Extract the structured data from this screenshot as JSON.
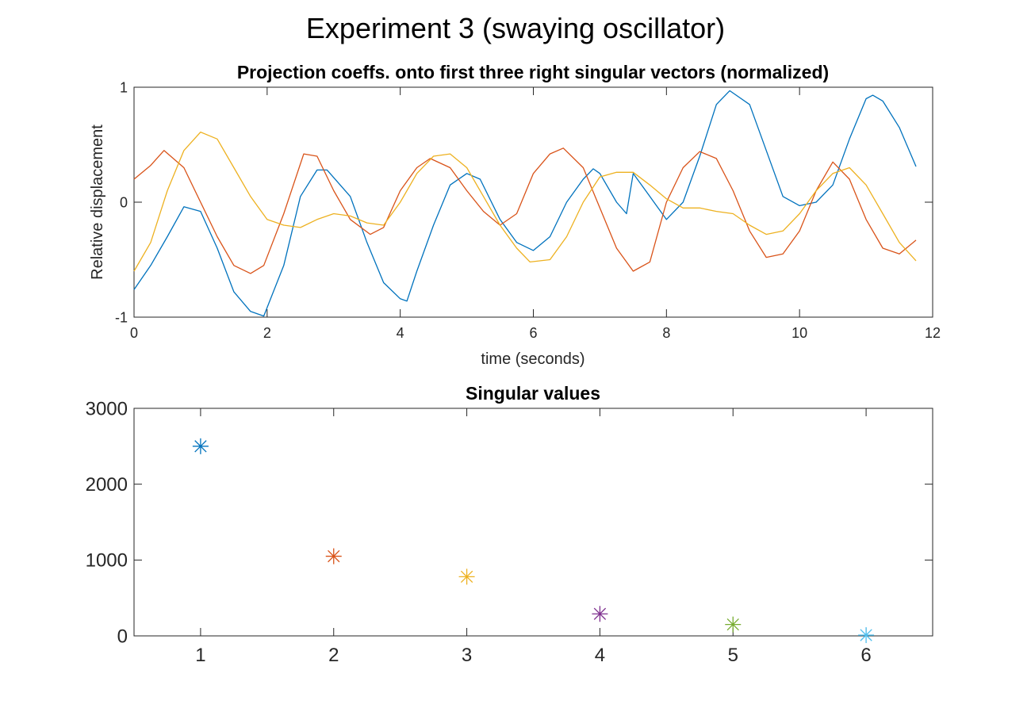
{
  "figure": {
    "title": "Experiment 3 (swaying oscillator)"
  },
  "chart_data": [
    {
      "type": "line",
      "title": "Projection coeffs. onto first three right singular vectors (normalized)",
      "xlabel": "time (seconds)",
      "ylabel": "Relative displacement",
      "xlim": [
        0,
        12
      ],
      "ylim": [
        -1,
        1
      ],
      "xticks": [
        0,
        2,
        4,
        6,
        8,
        10,
        12
      ],
      "yticks": [
        -1,
        0,
        1
      ],
      "grid": false,
      "series": [
        {
          "color": "#0072BD",
          "x": [
            0,
            0.25,
            0.5,
            0.75,
            1.0,
            1.25,
            1.5,
            1.75,
            1.95,
            2.25,
            2.5,
            2.75,
            2.9,
            3.25,
            3.5,
            3.75,
            4.0,
            4.1,
            4.25,
            4.5,
            4.75,
            5.0,
            5.2,
            5.5,
            5.75,
            6.0,
            6.25,
            6.5,
            6.75,
            6.9,
            7.0,
            7.25,
            7.4,
            7.5,
            7.75,
            8.0,
            8.25,
            8.5,
            8.75,
            8.95,
            9.25,
            9.5,
            9.75,
            10.0,
            10.25,
            10.5,
            10.75,
            11.0,
            11.1,
            11.25,
            11.5,
            11.75
          ],
          "y": [
            -0.76,
            -0.55,
            -0.3,
            -0.04,
            -0.08,
            -0.4,
            -0.78,
            -0.95,
            -0.99,
            -0.55,
            0.05,
            0.28,
            0.28,
            0.05,
            -0.35,
            -0.7,
            -0.84,
            -0.86,
            -0.6,
            -0.2,
            0.15,
            0.25,
            0.2,
            -0.15,
            -0.35,
            -0.42,
            -0.3,
            0.0,
            0.2,
            0.29,
            0.25,
            0.0,
            -0.1,
            0.25,
            0.05,
            -0.15,
            0.0,
            0.4,
            0.85,
            0.97,
            0.85,
            0.45,
            0.05,
            -0.03,
            0.0,
            0.15,
            0.55,
            0.9,
            0.93,
            0.88,
            0.65,
            0.31
          ]
        },
        {
          "color": "#D95319",
          "x": [
            0,
            0.25,
            0.45,
            0.75,
            1.0,
            1.25,
            1.5,
            1.75,
            1.95,
            2.25,
            2.55,
            2.75,
            3.0,
            3.25,
            3.55,
            3.75,
            4.0,
            4.25,
            4.45,
            4.75,
            5.0,
            5.25,
            5.5,
            5.75,
            6.0,
            6.25,
            6.45,
            6.75,
            7.0,
            7.25,
            7.5,
            7.75,
            8.0,
            8.25,
            8.5,
            8.75,
            9.0,
            9.25,
            9.5,
            9.75,
            10.0,
            10.25,
            10.5,
            10.75,
            11.0,
            11.25,
            11.5,
            11.75
          ],
          "y": [
            0.2,
            0.32,
            0.45,
            0.3,
            0.0,
            -0.3,
            -0.55,
            -0.62,
            -0.55,
            -0.1,
            0.42,
            0.4,
            0.1,
            -0.15,
            -0.28,
            -0.22,
            0.1,
            0.3,
            0.38,
            0.3,
            0.1,
            -0.08,
            -0.2,
            -0.1,
            0.25,
            0.42,
            0.47,
            0.3,
            -0.05,
            -0.4,
            -0.6,
            -0.52,
            0.0,
            0.3,
            0.44,
            0.38,
            0.1,
            -0.25,
            -0.48,
            -0.45,
            -0.25,
            0.1,
            0.35,
            0.2,
            -0.15,
            -0.4,
            -0.45,
            -0.33
          ]
        },
        {
          "color": "#EDB120",
          "x": [
            0,
            0.25,
            0.5,
            0.75,
            1.0,
            1.25,
            1.5,
            1.75,
            2.0,
            2.25,
            2.5,
            2.75,
            3.0,
            3.25,
            3.5,
            3.75,
            4.0,
            4.25,
            4.5,
            4.75,
            5.0,
            5.25,
            5.5,
            5.75,
            5.95,
            6.25,
            6.5,
            6.75,
            7.0,
            7.25,
            7.5,
            7.75,
            8.0,
            8.25,
            8.5,
            8.75,
            9.0,
            9.25,
            9.5,
            9.75,
            10.0,
            10.25,
            10.5,
            10.75,
            11.0,
            11.25,
            11.5,
            11.75
          ],
          "y": [
            -0.6,
            -0.35,
            0.1,
            0.45,
            0.61,
            0.55,
            0.3,
            0.05,
            -0.15,
            -0.2,
            -0.22,
            -0.15,
            -0.1,
            -0.12,
            -0.18,
            -0.2,
            0.0,
            0.25,
            0.4,
            0.42,
            0.3,
            0.05,
            -0.2,
            -0.4,
            -0.52,
            -0.5,
            -0.3,
            0.0,
            0.22,
            0.26,
            0.26,
            0.15,
            0.03,
            -0.05,
            -0.05,
            -0.08,
            -0.1,
            -0.2,
            -0.28,
            -0.25,
            -0.1,
            0.1,
            0.25,
            0.3,
            0.15,
            -0.1,
            -0.35,
            -0.51
          ]
        }
      ]
    },
    {
      "type": "scatter",
      "title": "Singular values",
      "xlabel": "",
      "ylabel": "",
      "xlim": [
        0.5,
        6.5
      ],
      "ylim": [
        0,
        3000
      ],
      "xticks": [
        1,
        2,
        3,
        4,
        5,
        6
      ],
      "yticks": [
        0,
        1000,
        2000,
        3000
      ],
      "grid": false,
      "marker": "asterisk",
      "points": [
        {
          "x": 1,
          "y": 2500,
          "color": "#0072BD"
        },
        {
          "x": 2,
          "y": 1050,
          "color": "#D95319"
        },
        {
          "x": 3,
          "y": 780,
          "color": "#EDB120"
        },
        {
          "x": 4,
          "y": 290,
          "color": "#7E2F8E"
        },
        {
          "x": 5,
          "y": 150,
          "color": "#77AC30"
        },
        {
          "x": 6,
          "y": 10,
          "color": "#4DBEEE"
        }
      ]
    }
  ]
}
